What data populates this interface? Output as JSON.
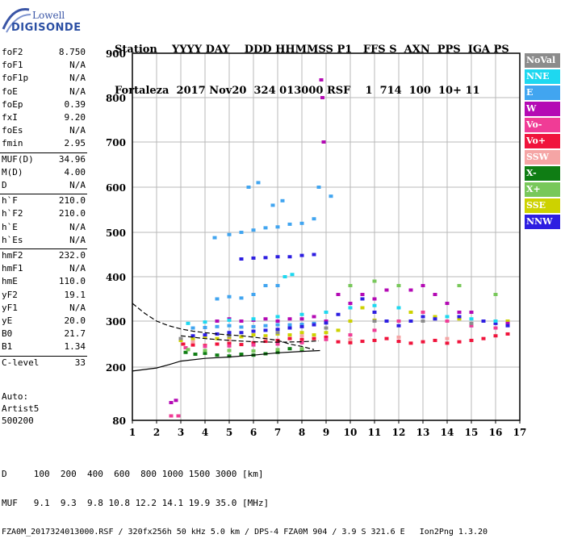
{
  "logo": {
    "top": "Lowell",
    "bottom": "DIGISONDE"
  },
  "header": {
    "labels": "Station    YYYY DAY    DDD HHMMSS P1   FFS S  AXN  PPS  IGA PS",
    "values": "Fortaleza  2017 Nov20  324 013000 RSF    1  714  100  10+ 11"
  },
  "params": [
    {
      "k": "foF2",
      "v": "8.750"
    },
    {
      "k": "foF1",
      "v": "N/A"
    },
    {
      "k": "foF1p",
      "v": "N/A"
    },
    {
      "k": "foE",
      "v": "N/A"
    },
    {
      "k": "foEp",
      "v": "0.39"
    },
    {
      "k": "fxI",
      "v": "9.20"
    },
    {
      "k": "foEs",
      "v": "N/A"
    },
    {
      "k": "fmin",
      "v": "2.95"
    },
    {
      "k": "MUF(D)",
      "v": "34.96"
    },
    {
      "k": "M(D)",
      "v": "4.00"
    },
    {
      "k": "D",
      "v": "N/A"
    },
    {
      "k": "h`F",
      "v": "210.0"
    },
    {
      "k": "h`F2",
      "v": "210.0"
    },
    {
      "k": "h`E",
      "v": "N/A"
    },
    {
      "k": "h`Es",
      "v": "N/A"
    },
    {
      "k": "hmF2",
      "v": "232.0"
    },
    {
      "k": "hmF1",
      "v": "N/A"
    },
    {
      "k": "hmE",
      "v": "110.0"
    },
    {
      "k": "yF2",
      "v": "19.1"
    },
    {
      "k": "yF1",
      "v": "N/A"
    },
    {
      "k": "yE",
      "v": "20.0"
    },
    {
      "k": "B0",
      "v": "21.7"
    },
    {
      "k": "B1",
      "v": "1.34"
    },
    {
      "k": "C-level",
      "v": "33"
    }
  ],
  "auto": [
    "Auto:",
    "Artist5",
    "500200"
  ],
  "legend": [
    {
      "label": "NoVal",
      "color": "#8c8c8c"
    },
    {
      "label": "NNE",
      "color": "#1ed8f0"
    },
    {
      "label": "E",
      "color": "#41a5f0"
    },
    {
      "label": "W",
      "color": "#b40ab4"
    },
    {
      "label": "Vo-",
      "color": "#f03c96"
    },
    {
      "label": "Vo+",
      "color": "#f0143c"
    },
    {
      "label": "SSW",
      "color": "#f5a5a5"
    },
    {
      "label": "X-",
      "color": "#0f7d14"
    },
    {
      "label": "X+",
      "color": "#78c85a"
    },
    {
      "label": "SSE",
      "color": "#cdd200"
    },
    {
      "label": "NNW",
      "color": "#2d1ee1"
    }
  ],
  "footer": {
    "line1": "D     100  200  400  600  800 1000 1500 3000 [km]",
    "line2": "MUF   9.1  9.3  9.8 10.8 12.2 14.1 19.9 35.0 [MHz]",
    "line3": "FZA0M_2017324013000.RSF / 320fx256h 50 kHz 5.0 km / DPS-4 FZA0M 904 / 3.9 S 321.6 E   Ion2Png 1.3.20"
  },
  "chart_data": {
    "type": "scatter",
    "xlabel": "",
    "ylabel": "",
    "xlim": [
      1,
      17
    ],
    "ylim": [
      80,
      900
    ],
    "xticks": [
      1,
      2,
      3,
      4,
      5,
      6,
      7,
      8,
      9,
      10,
      11,
      12,
      13,
      14,
      15,
      16,
      17
    ],
    "yticks": [
      80,
      200,
      300,
      400,
      500,
      600,
      700,
      800,
      900
    ],
    "grid": true,
    "legend_position": "right",
    "series": [
      {
        "name": "X-",
        "color": "#0f7d14",
        "points": [
          [
            3.2,
            232
          ],
          [
            3.6,
            228
          ],
          [
            4.0,
            230
          ],
          [
            4.5,
            226
          ],
          [
            5.0,
            224
          ],
          [
            5.5,
            228
          ],
          [
            6.0,
            226
          ],
          [
            6.5,
            229
          ],
          [
            7.0,
            232
          ],
          [
            7.5,
            240
          ],
          [
            8.0,
            238
          ]
        ]
      },
      {
        "name": "Vo+",
        "color": "#f0143c",
        "points": [
          [
            3.1,
            250
          ],
          [
            3.5,
            248
          ],
          [
            4.0,
            247
          ],
          [
            4.5,
            250
          ],
          [
            5.0,
            252
          ],
          [
            5.5,
            249
          ],
          [
            6.0,
            253
          ],
          [
            6.5,
            256
          ],
          [
            7.0,
            258
          ],
          [
            7.5,
            262
          ],
          [
            8.0,
            260
          ],
          [
            8.5,
            262
          ],
          [
            9.0,
            265
          ],
          [
            9.5,
            255
          ],
          [
            10.0,
            253
          ],
          [
            10.5,
            256
          ],
          [
            11.0,
            258
          ],
          [
            11.5,
            262
          ],
          [
            12.0,
            256
          ],
          [
            12.5,
            252
          ],
          [
            13.0,
            255
          ],
          [
            13.5,
            258
          ],
          [
            14.0,
            252
          ],
          [
            14.5,
            255
          ],
          [
            15.0,
            258
          ],
          [
            15.5,
            262
          ],
          [
            16.0,
            268
          ],
          [
            16.5,
            272
          ]
        ]
      },
      {
        "name": "SSE",
        "color": "#cdd200",
        "points": [
          [
            3.0,
            258
          ],
          [
            3.5,
            262
          ],
          [
            4.0,
            265
          ],
          [
            4.5,
            262
          ],
          [
            5.0,
            262
          ],
          [
            5.5,
            266
          ],
          [
            6.0,
            270
          ],
          [
            6.5,
            268
          ],
          [
            7.0,
            272
          ],
          [
            7.5,
            270
          ],
          [
            8.0,
            275
          ],
          [
            8.5,
            270
          ],
          [
            9.0,
            275
          ],
          [
            9.5,
            280
          ],
          [
            10.0,
            300
          ],
          [
            10.5,
            330
          ],
          [
            11.0,
            302
          ],
          [
            11.5,
            300
          ],
          [
            12.5,
            320
          ],
          [
            13.5,
            310
          ],
          [
            14.5,
            305
          ],
          [
            15.5,
            300
          ],
          [
            16.5,
            300
          ]
        ]
      },
      {
        "name": "E",
        "color": "#41a5f0",
        "points": [
          [
            3.5,
            285
          ],
          [
            4.0,
            286
          ],
          [
            4.5,
            288
          ],
          [
            5.0,
            290
          ],
          [
            5.5,
            287
          ],
          [
            6.0,
            288
          ],
          [
            6.5,
            290
          ],
          [
            7.0,
            292
          ],
          [
            7.5,
            292
          ],
          [
            8.0,
            293
          ],
          [
            8.5,
            295
          ],
          [
            4.5,
            350
          ],
          [
            5.0,
            355
          ],
          [
            5.5,
            352
          ],
          [
            6.0,
            360
          ],
          [
            6.5,
            380
          ],
          [
            7.0,
            380
          ],
          [
            4.4,
            488
          ],
          [
            5.0,
            495
          ],
          [
            5.5,
            500
          ],
          [
            6.0,
            505
          ],
          [
            6.5,
            510
          ],
          [
            7.0,
            512
          ],
          [
            7.5,
            518
          ],
          [
            8.0,
            520
          ],
          [
            8.5,
            530
          ],
          [
            5.8,
            600
          ],
          [
            6.2,
            610
          ],
          [
            6.8,
            560
          ],
          [
            7.2,
            570
          ],
          [
            8.7,
            600
          ],
          [
            9.2,
            580
          ]
        ]
      },
      {
        "name": "W",
        "color": "#b40ab4",
        "points": [
          [
            2.6,
            120
          ],
          [
            2.8,
            125
          ],
          [
            4.5,
            300
          ],
          [
            5.0,
            305
          ],
          [
            5.5,
            300
          ],
          [
            6.0,
            302
          ],
          [
            6.5,
            305
          ],
          [
            7.0,
            300
          ],
          [
            7.5,
            305
          ],
          [
            8.0,
            305
          ],
          [
            8.5,
            310
          ],
          [
            9.0,
            300
          ],
          [
            9.5,
            360
          ],
          [
            10.0,
            340
          ],
          [
            10.5,
            360
          ],
          [
            11.0,
            350
          ],
          [
            11.5,
            370
          ],
          [
            12.0,
            380
          ],
          [
            12.5,
            370
          ],
          [
            13.0,
            380
          ],
          [
            13.5,
            360
          ],
          [
            14.0,
            340
          ],
          [
            14.5,
            320
          ],
          [
            15.0,
            320
          ],
          [
            15.5,
            300
          ],
          [
            16.0,
            300
          ],
          [
            16.5,
            295
          ],
          [
            8.8,
            840
          ],
          [
            8.85,
            800
          ],
          [
            8.9,
            700
          ]
        ]
      },
      {
        "name": "NNW",
        "color": "#2d1ee1",
        "points": [
          [
            3.5,
            268
          ],
          [
            4.0,
            270
          ],
          [
            4.5,
            272
          ],
          [
            5.0,
            275
          ],
          [
            5.5,
            275
          ],
          [
            6.0,
            278
          ],
          [
            6.5,
            280
          ],
          [
            7.0,
            282
          ],
          [
            7.5,
            285
          ],
          [
            8.0,
            288
          ],
          [
            8.5,
            292
          ],
          [
            9.0,
            296
          ],
          [
            9.5,
            315
          ],
          [
            10.0,
            330
          ],
          [
            10.5,
            350
          ],
          [
            11.0,
            320
          ],
          [
            11.5,
            300
          ],
          [
            12.0,
            290
          ],
          [
            12.5,
            300
          ],
          [
            13.0,
            310
          ],
          [
            13.5,
            305
          ],
          [
            14.0,
            300
          ],
          [
            14.5,
            310
          ],
          [
            15.0,
            290
          ],
          [
            15.5,
            300
          ],
          [
            16.0,
            295
          ],
          [
            16.5,
            290
          ],
          [
            5.5,
            440
          ],
          [
            6.0,
            442
          ],
          [
            6.5,
            443
          ],
          [
            7.0,
            445
          ],
          [
            7.5,
            445
          ],
          [
            8.0,
            448
          ],
          [
            8.5,
            450
          ]
        ]
      },
      {
        "name": "NNE",
        "color": "#1ed8f0",
        "points": [
          [
            3.3,
            295
          ],
          [
            4.0,
            298
          ],
          [
            5.0,
            302
          ],
          [
            6.0,
            305
          ],
          [
            7.0,
            310
          ],
          [
            8.0,
            315
          ],
          [
            9.0,
            320
          ],
          [
            10.0,
            330
          ],
          [
            11.0,
            335
          ],
          [
            12.0,
            330
          ],
          [
            13.0,
            320
          ],
          [
            14.0,
            310
          ],
          [
            15.0,
            305
          ],
          [
            16.0,
            300
          ],
          [
            7.3,
            400
          ],
          [
            7.6,
            405
          ]
        ]
      },
      {
        "name": "Vo-",
        "color": "#f03c96",
        "points": [
          [
            3.2,
            242
          ],
          [
            4.0,
            245
          ],
          [
            5.0,
            246
          ],
          [
            6.0,
            248
          ],
          [
            7.0,
            250
          ],
          [
            8.0,
            253
          ],
          [
            9.0,
            260
          ],
          [
            10.0,
            270
          ],
          [
            11.0,
            280
          ],
          [
            12.0,
            300
          ],
          [
            13.0,
            320
          ],
          [
            14.0,
            300
          ],
          [
            15.0,
            290
          ],
          [
            16.0,
            285
          ],
          [
            2.6,
            90
          ],
          [
            2.9,
            90
          ]
        ]
      },
      {
        "name": "X+",
        "color": "#78c85a",
        "points": [
          [
            3.3,
            238
          ],
          [
            4.0,
            236
          ],
          [
            5.0,
            236
          ],
          [
            6.0,
            235
          ],
          [
            7.0,
            238
          ],
          [
            8.0,
            240
          ],
          [
            10.0,
            380
          ],
          [
            11.0,
            390
          ],
          [
            12.0,
            380
          ],
          [
            14.5,
            380
          ],
          [
            16.0,
            360
          ]
        ]
      },
      {
        "name": "SSW",
        "color": "#f5a5a5",
        "points": [
          [
            3.5,
            255
          ],
          [
            5.0,
            258
          ],
          [
            6.5,
            262
          ],
          [
            8.0,
            268
          ],
          [
            10.0,
            260
          ],
          [
            12.0,
            265
          ],
          [
            14.0,
            262
          ]
        ]
      },
      {
        "name": "NoVal",
        "color": "#8c8c8c",
        "points": [
          [
            3.0,
            262
          ],
          [
            5.0,
            268
          ],
          [
            7.0,
            275
          ],
          [
            9.0,
            285
          ],
          [
            11.0,
            300
          ],
          [
            13.0,
            300
          ],
          [
            15.0,
            295
          ]
        ]
      }
    ],
    "traces": [
      {
        "style": "dashed",
        "points": [
          [
            1.0,
            340
          ],
          [
            1.5,
            318
          ],
          [
            2.0,
            300
          ],
          [
            2.5,
            290
          ],
          [
            3.0,
            283
          ],
          [
            3.5,
            278
          ],
          [
            4.0,
            275
          ],
          [
            4.5,
            272
          ],
          [
            5.0,
            270
          ],
          [
            5.5,
            268
          ],
          [
            6.0,
            265
          ],
          [
            6.5,
            262
          ],
          [
            7.0,
            258
          ],
          [
            7.5,
            250
          ],
          [
            8.0,
            245
          ],
          [
            8.5,
            238
          ]
        ]
      },
      {
        "style": "solid",
        "points": [
          [
            1.0,
            191
          ],
          [
            2.0,
            198
          ],
          [
            2.5,
            205
          ],
          [
            3.0,
            213
          ],
          [
            4.0,
            219
          ],
          [
            5.0,
            222
          ],
          [
            6.0,
            226
          ],
          [
            7.0,
            231
          ],
          [
            8.0,
            234
          ],
          [
            8.75,
            236
          ]
        ]
      },
      {
        "style": "dashed",
        "points": [
          [
            3.0,
            268
          ],
          [
            4.0,
            262
          ],
          [
            5.0,
            258
          ],
          [
            6.0,
            255
          ],
          [
            7.0,
            254
          ],
          [
            8.0,
            255
          ],
          [
            8.7,
            257
          ]
        ]
      }
    ]
  }
}
